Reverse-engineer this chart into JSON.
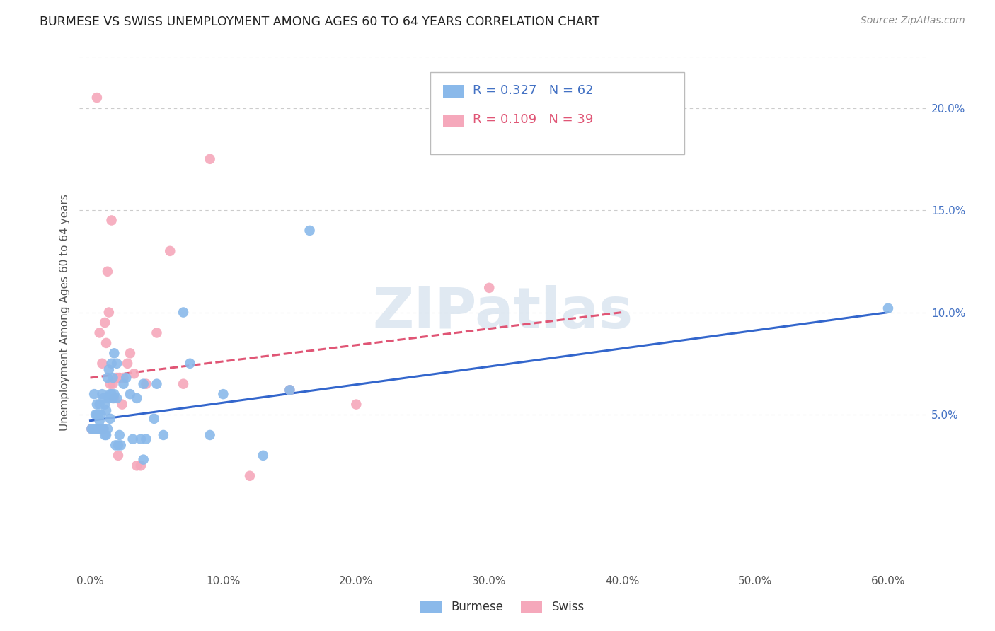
{
  "title": "BURMESE VS SWISS UNEMPLOYMENT AMONG AGES 60 TO 64 YEARS CORRELATION CHART",
  "source": "Source: ZipAtlas.com",
  "ylabel": "Unemployment Among Ages 60 to 64 years",
  "xlabel_ticks": [
    "0.0%",
    "10.0%",
    "20.0%",
    "30.0%",
    "40.0%",
    "50.0%",
    "60.0%"
  ],
  "xlabel_vals": [
    0.0,
    0.1,
    0.2,
    0.3,
    0.4,
    0.5,
    0.6
  ],
  "ylabel_ticks": [
    "5.0%",
    "10.0%",
    "15.0%",
    "20.0%"
  ],
  "ylabel_vals": [
    0.05,
    0.1,
    0.15,
    0.2
  ],
  "xlim": [
    -0.008,
    0.628
  ],
  "ylim": [
    -0.025,
    0.225
  ],
  "burmese_R": 0.327,
  "burmese_N": 62,
  "swiss_R": 0.109,
  "swiss_N": 39,
  "burmese_color": "#8ab9ea",
  "swiss_color": "#f5a8bb",
  "burmese_line_color": "#3366cc",
  "swiss_line_color": "#e05575",
  "watermark_text": "ZIPatlas",
  "burmese_x": [
    0.001,
    0.002,
    0.003,
    0.003,
    0.004,
    0.004,
    0.005,
    0.005,
    0.005,
    0.006,
    0.006,
    0.007,
    0.007,
    0.007,
    0.008,
    0.008,
    0.009,
    0.009,
    0.01,
    0.01,
    0.011,
    0.011,
    0.012,
    0.012,
    0.013,
    0.013,
    0.014,
    0.014,
    0.015,
    0.015,
    0.016,
    0.016,
    0.017,
    0.017,
    0.018,
    0.018,
    0.019,
    0.02,
    0.02,
    0.021,
    0.022,
    0.023,
    0.025,
    0.027,
    0.03,
    0.032,
    0.035,
    0.038,
    0.04,
    0.04,
    0.042,
    0.048,
    0.05,
    0.055,
    0.07,
    0.075,
    0.09,
    0.1,
    0.13,
    0.15,
    0.165,
    0.6
  ],
  "burmese_y": [
    0.043,
    0.043,
    0.043,
    0.06,
    0.043,
    0.05,
    0.043,
    0.05,
    0.055,
    0.043,
    0.05,
    0.043,
    0.047,
    0.055,
    0.043,
    0.05,
    0.043,
    0.06,
    0.043,
    0.058,
    0.04,
    0.055,
    0.04,
    0.052,
    0.043,
    0.068,
    0.058,
    0.072,
    0.048,
    0.06,
    0.06,
    0.075,
    0.058,
    0.068,
    0.06,
    0.08,
    0.035,
    0.058,
    0.075,
    0.035,
    0.04,
    0.035,
    0.065,
    0.068,
    0.06,
    0.038,
    0.058,
    0.038,
    0.028,
    0.065,
    0.038,
    0.048,
    0.065,
    0.04,
    0.1,
    0.075,
    0.04,
    0.06,
    0.03,
    0.062,
    0.14,
    0.102
  ],
  "swiss_x": [
    0.001,
    0.002,
    0.003,
    0.004,
    0.005,
    0.005,
    0.006,
    0.007,
    0.007,
    0.008,
    0.009,
    0.01,
    0.011,
    0.012,
    0.013,
    0.014,
    0.015,
    0.016,
    0.017,
    0.018,
    0.02,
    0.021,
    0.022,
    0.024,
    0.025,
    0.028,
    0.03,
    0.033,
    0.035,
    0.038,
    0.042,
    0.05,
    0.06,
    0.07,
    0.09,
    0.12,
    0.15,
    0.2,
    0.3
  ],
  "swiss_y": [
    0.043,
    0.043,
    0.043,
    0.043,
    0.043,
    0.205,
    0.043,
    0.043,
    0.09,
    0.043,
    0.075,
    0.043,
    0.095,
    0.085,
    0.12,
    0.1,
    0.065,
    0.145,
    0.065,
    0.058,
    0.068,
    0.03,
    0.068,
    0.055,
    0.068,
    0.075,
    0.08,
    0.07,
    0.025,
    0.025,
    0.065,
    0.09,
    0.13,
    0.065,
    0.175,
    0.02,
    0.062,
    0.055,
    0.112
  ],
  "burmese_trend_x": [
    0.0,
    0.6
  ],
  "burmese_trend_y": [
    0.047,
    0.1
  ],
  "swiss_trend_x": [
    0.0,
    0.4
  ],
  "swiss_trend_y": [
    0.068,
    0.1
  ]
}
